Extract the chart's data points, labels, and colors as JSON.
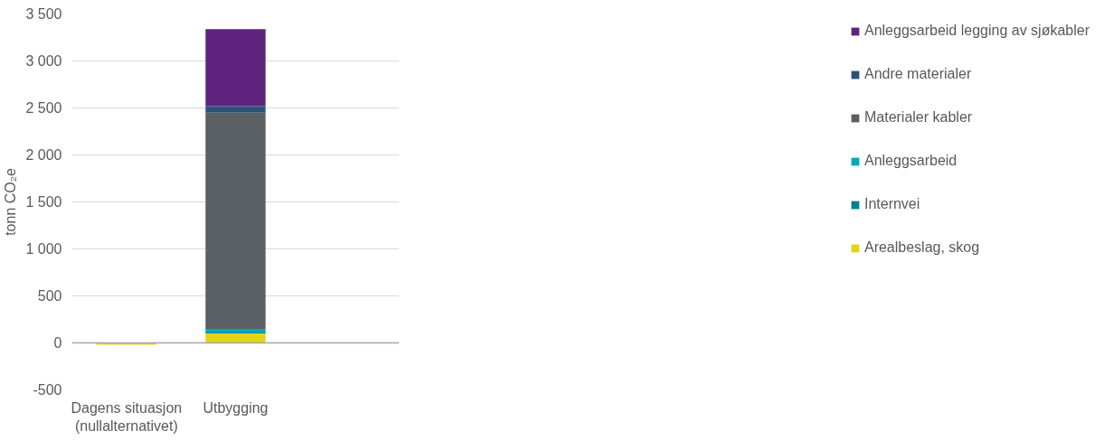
{
  "chart_data": {
    "type": "bar",
    "stacked": true,
    "ylabel": "tonn CO₂e",
    "categories": [
      "Dagens situasjon (nullalternativet)",
      "Utbygging",
      null
    ],
    "series": [
      {
        "name": "Arealbeslag, skog",
        "color": "#e2d418",
        "values": [
          -20,
          100,
          null
        ]
      },
      {
        "name": "Internvei",
        "color": "#00808c",
        "values": [
          0,
          10,
          null
        ]
      },
      {
        "name": "Anleggsarbeid",
        "color": "#00a9bc",
        "values": [
          0,
          40,
          null
        ]
      },
      {
        "name": "Materialer kabler",
        "color": "#5a5f63",
        "values": [
          0,
          2300,
          null
        ]
      },
      {
        "name": "Andre materialer",
        "color": "#2c5278",
        "values": [
          0,
          70,
          null
        ]
      },
      {
        "name": "Anleggsarbeid legging av sjøkabler",
        "color": "#5e247d",
        "values": [
          0,
          820,
          null
        ]
      }
    ],
    "ylim": [
      -500,
      3500
    ],
    "yticks": [
      {
        "value": -500,
        "label": "-500"
      },
      0,
      500,
      {
        "value": 1000,
        "label": "1 000"
      },
      {
        "value": 1500,
        "label": "1 500"
      },
      {
        "value": 2000,
        "label": "2 000"
      },
      {
        "value": 2500,
        "label": "2 500"
      },
      {
        "value": 3000,
        "label": "3 000"
      },
      {
        "value": 3500,
        "label": "3 500"
      }
    ],
    "grid": "y",
    "legend": "right"
  }
}
